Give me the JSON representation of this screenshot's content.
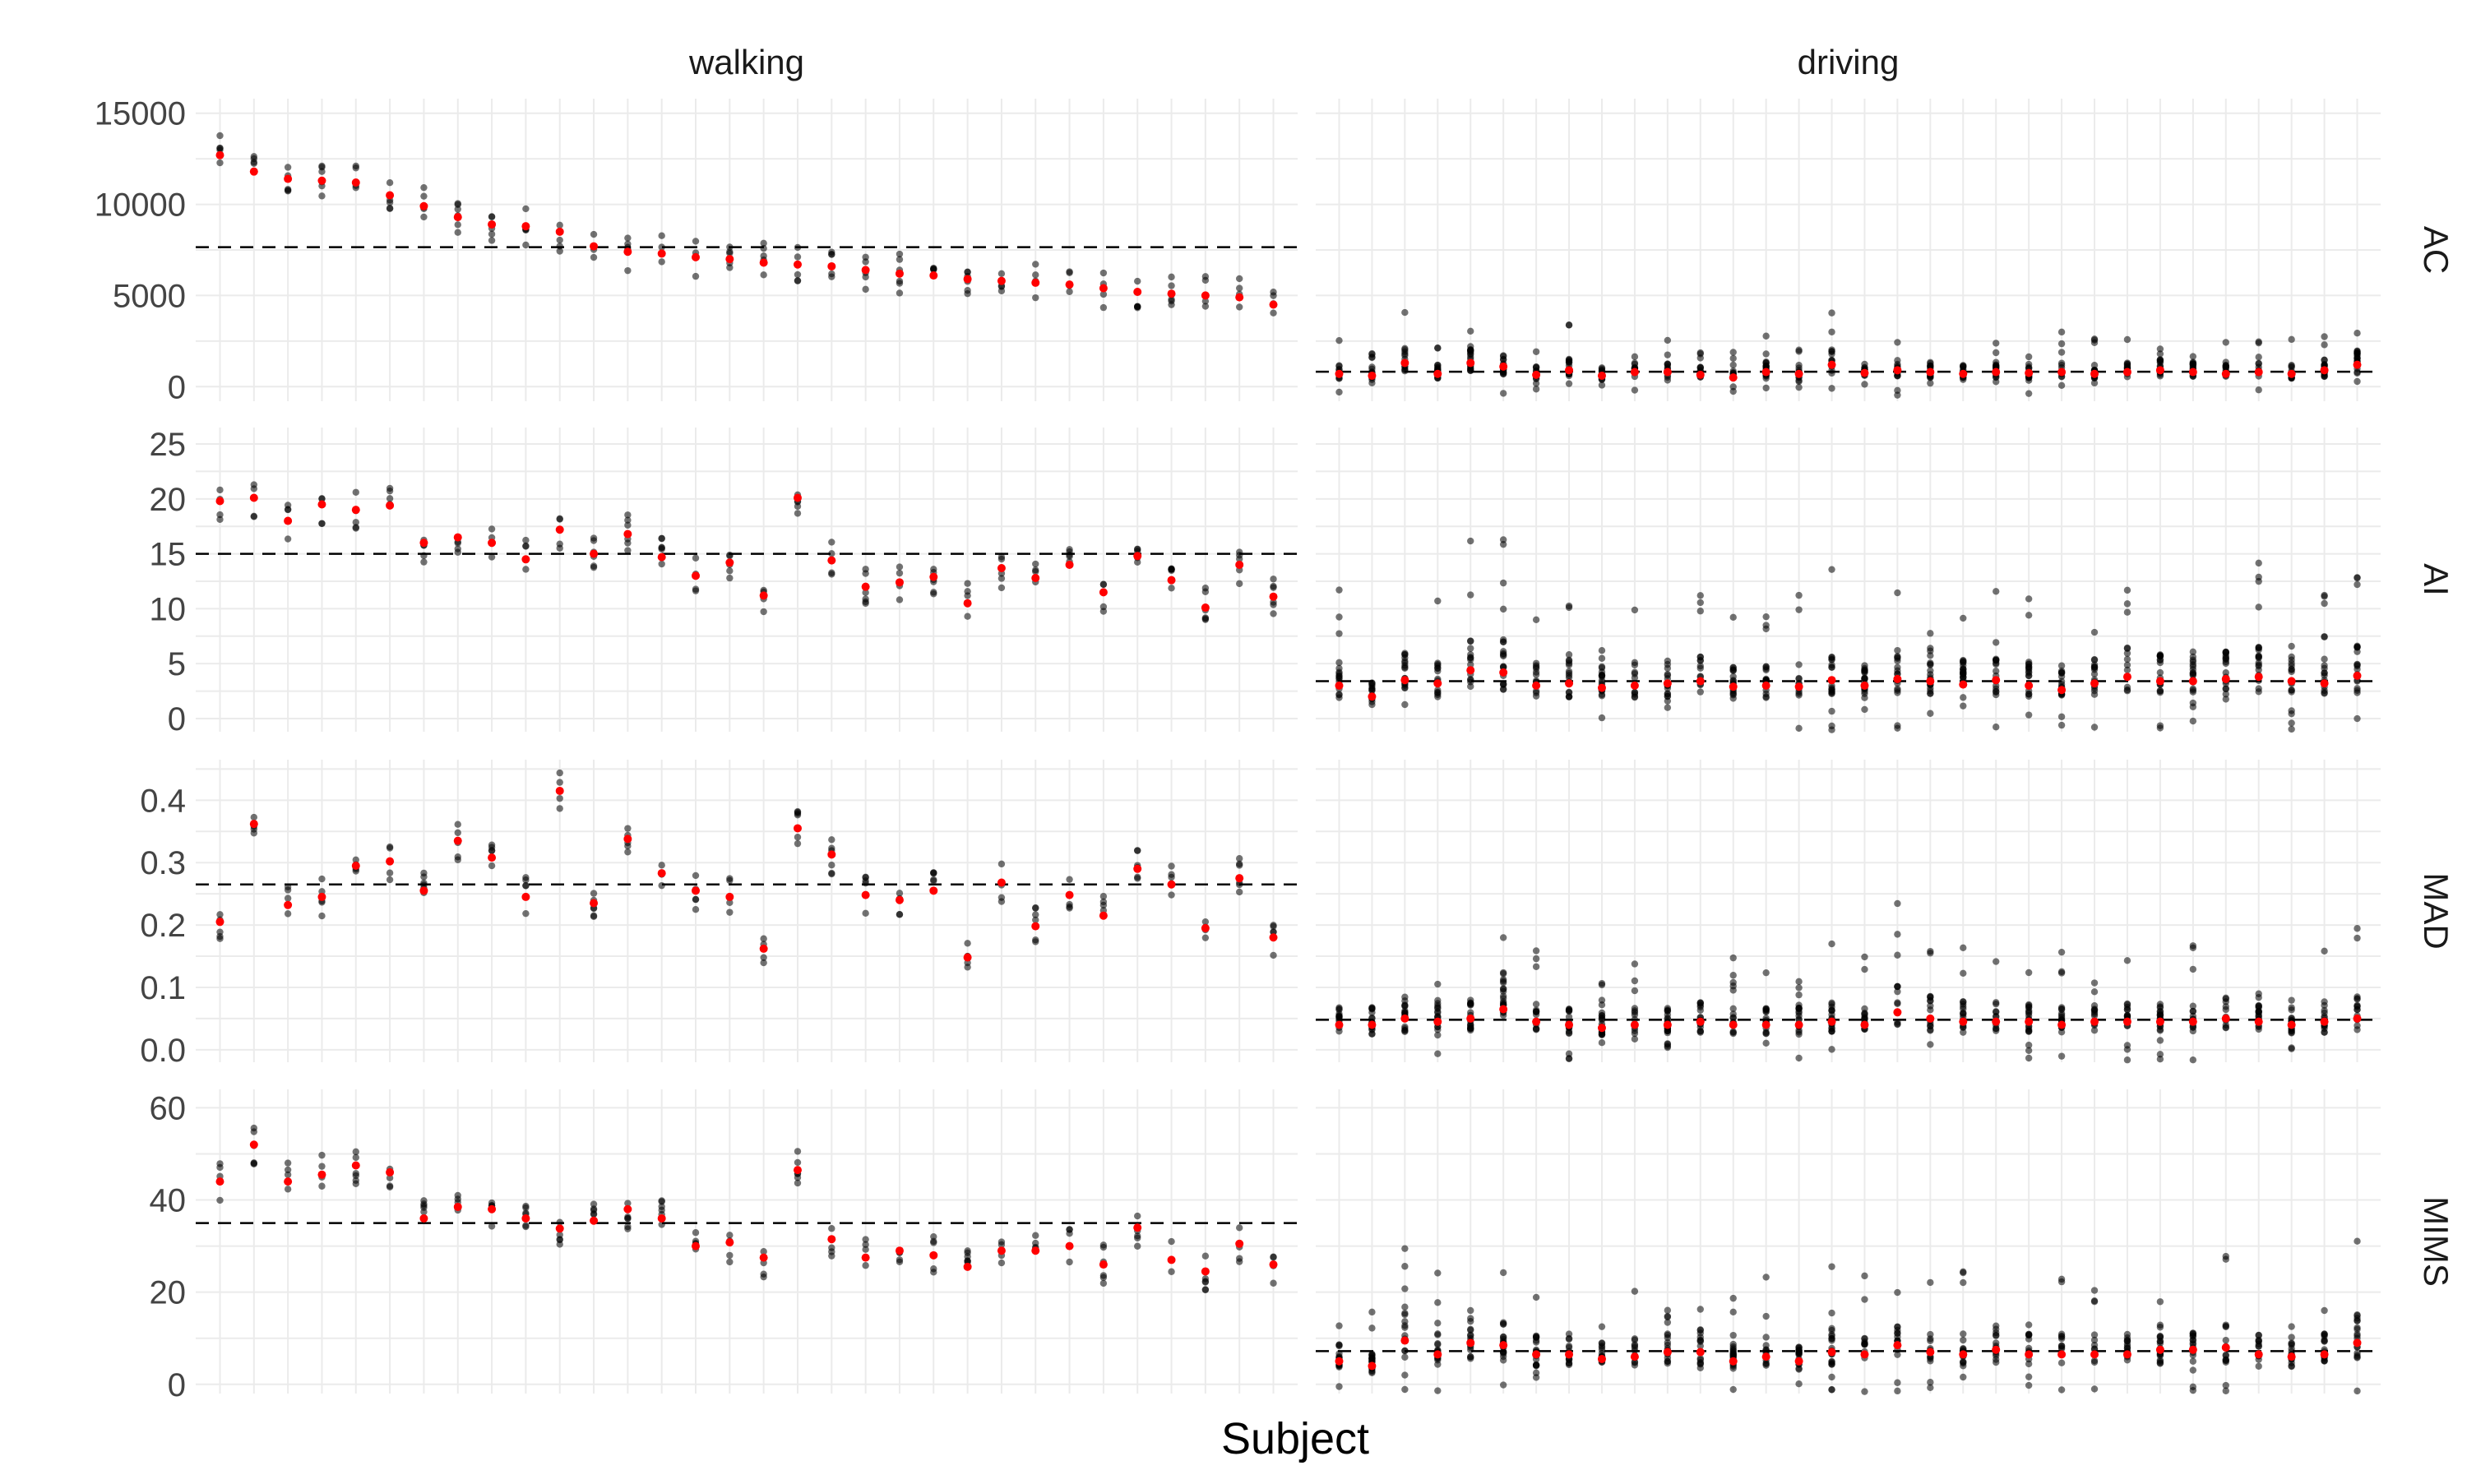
{
  "chart_data": {
    "type": "scatter",
    "xlabel": "Subject",
    "n_subjects": 32,
    "facet_columns": [
      "walking",
      "driving"
    ],
    "colors": {
      "points": "#000000",
      "mean": "#ff0000",
      "reference_line": "#000000",
      "grid": "#ebebeb"
    },
    "grid": true,
    "legend": "none",
    "rows": [
      {
        "name": "AC",
        "ylim": [
          -800,
          15800
        ],
        "yticks": [
          "0",
          "5000",
          "10000",
          "15000"
        ],
        "reference": {
          "walking": 7650,
          "driving": 820
        },
        "walking_means": [
          12700,
          11800,
          11400,
          11300,
          11200,
          10500,
          9900,
          9300,
          8900,
          8800,
          8500,
          7700,
          7400,
          7300,
          7100,
          7000,
          6800,
          6700,
          6600,
          6400,
          6200,
          6100,
          5900,
          5800,
          5700,
          5600,
          5400,
          5200,
          5100,
          5000,
          4900,
          4500
        ],
        "driving_means": [
          700,
          600,
          1300,
          700,
          1300,
          1100,
          650,
          900,
          600,
          800,
          800,
          650,
          500,
          800,
          700,
          1200,
          750,
          900,
          800,
          700,
          800,
          750,
          800,
          700,
          800,
          900,
          800,
          700,
          800,
          700,
          900,
          1200
        ]
      },
      {
        "name": "AI",
        "ylim": [
          -1.2,
          26.5
        ],
        "yticks": [
          "0",
          "5",
          "10",
          "15",
          "20",
          "25"
        ],
        "reference": {
          "walking": 15.0,
          "driving": 3.4
        },
        "walking_means": [
          19.8,
          20.1,
          18.0,
          19.5,
          19.0,
          19.4,
          16.0,
          16.5,
          16.0,
          14.5,
          17.2,
          15.0,
          16.8,
          14.7,
          13.0,
          14.2,
          11.2,
          20.1,
          14.4,
          12.0,
          12.4,
          12.9,
          10.5,
          13.7,
          12.8,
          14.0,
          11.5,
          14.8,
          12.6,
          10.1,
          14.0,
          11.1
        ],
        "driving_means": [
          3.0,
          2.0,
          3.5,
          3.2,
          4.4,
          4.2,
          3.0,
          3.2,
          2.8,
          3.0,
          3.2,
          3.4,
          2.9,
          3.0,
          2.9,
          3.5,
          3.0,
          3.6,
          3.4,
          3.1,
          3.5,
          3.0,
          2.6,
          3.2,
          3.8,
          3.4,
          3.4,
          3.6,
          3.8,
          3.4,
          3.2,
          3.9
        ]
      },
      {
        "name": "MAD",
        "ylim": [
          -0.02,
          0.465
        ],
        "yticks": [
          "0.0",
          "0.1",
          "0.2",
          "0.3",
          "0.4"
        ],
        "reference": {
          "walking": 0.265,
          "driving": 0.048
        },
        "walking_means": [
          0.205,
          0.362,
          0.232,
          0.245,
          0.295,
          0.302,
          0.255,
          0.335,
          0.308,
          0.245,
          0.415,
          0.235,
          0.338,
          0.283,
          0.255,
          0.245,
          0.162,
          0.355,
          0.313,
          0.248,
          0.24,
          0.255,
          0.148,
          0.268,
          0.198,
          0.248,
          0.215,
          0.29,
          0.265,
          0.195,
          0.275,
          0.18
        ],
        "driving_means": [
          0.04,
          0.04,
          0.05,
          0.045,
          0.05,
          0.065,
          0.045,
          0.04,
          0.035,
          0.04,
          0.04,
          0.045,
          0.04,
          0.04,
          0.04,
          0.045,
          0.04,
          0.06,
          0.05,
          0.045,
          0.045,
          0.045,
          0.04,
          0.045,
          0.045,
          0.045,
          0.045,
          0.05,
          0.045,
          0.04,
          0.045,
          0.05
        ]
      },
      {
        "name": "MIMS",
        "ylim": [
          -2,
          64
        ],
        "yticks": [
          "0",
          "20",
          "40",
          "60"
        ],
        "reference": {
          "walking": 35.0,
          "driving": 7.2
        },
        "walking_means": [
          44.0,
          52.0,
          44.0,
          45.5,
          47.5,
          46.0,
          36.0,
          38.5,
          38.0,
          36.0,
          33.8,
          35.5,
          38.0,
          36.0,
          30.0,
          30.8,
          27.5,
          46.5,
          31.5,
          27.5,
          29.0,
          28.0,
          25.5,
          29.0,
          29.0,
          30.0,
          26.0,
          34.0,
          27.0,
          24.5,
          30.5,
          26.0
        ],
        "driving_means": [
          5.0,
          4.0,
          9.5,
          6.5,
          9.0,
          8.5,
          6.5,
          6.5,
          5.5,
          6.0,
          7.0,
          7.0,
          5.0,
          6.0,
          5.0,
          7.0,
          6.5,
          8.5,
          7.0,
          6.5,
          7.5,
          6.5,
          6.5,
          6.5,
          6.5,
          7.5,
          7.5,
          8.0,
          6.5,
          6.0,
          6.5,
          9.0
        ]
      }
    ]
  }
}
